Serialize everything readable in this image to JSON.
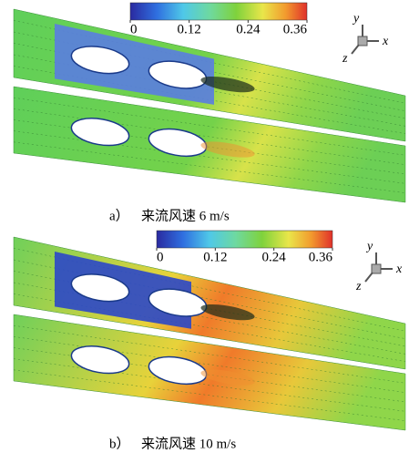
{
  "panels": [
    {
      "label": "a）",
      "caption": "来流风速 6 m/s",
      "colorbar_ticks": [
        0,
        0.12,
        0.24,
        0.36
      ],
      "axes": {
        "y": "y",
        "x": "x",
        "z": "z"
      }
    },
    {
      "label": "b）",
      "caption": "来流风速 10 m/s",
      "colorbar_ticks": [
        0,
        0.12,
        0.24,
        0.36
      ],
      "axes": {
        "y": "y",
        "x": "x",
        "z": "z"
      }
    }
  ]
}
